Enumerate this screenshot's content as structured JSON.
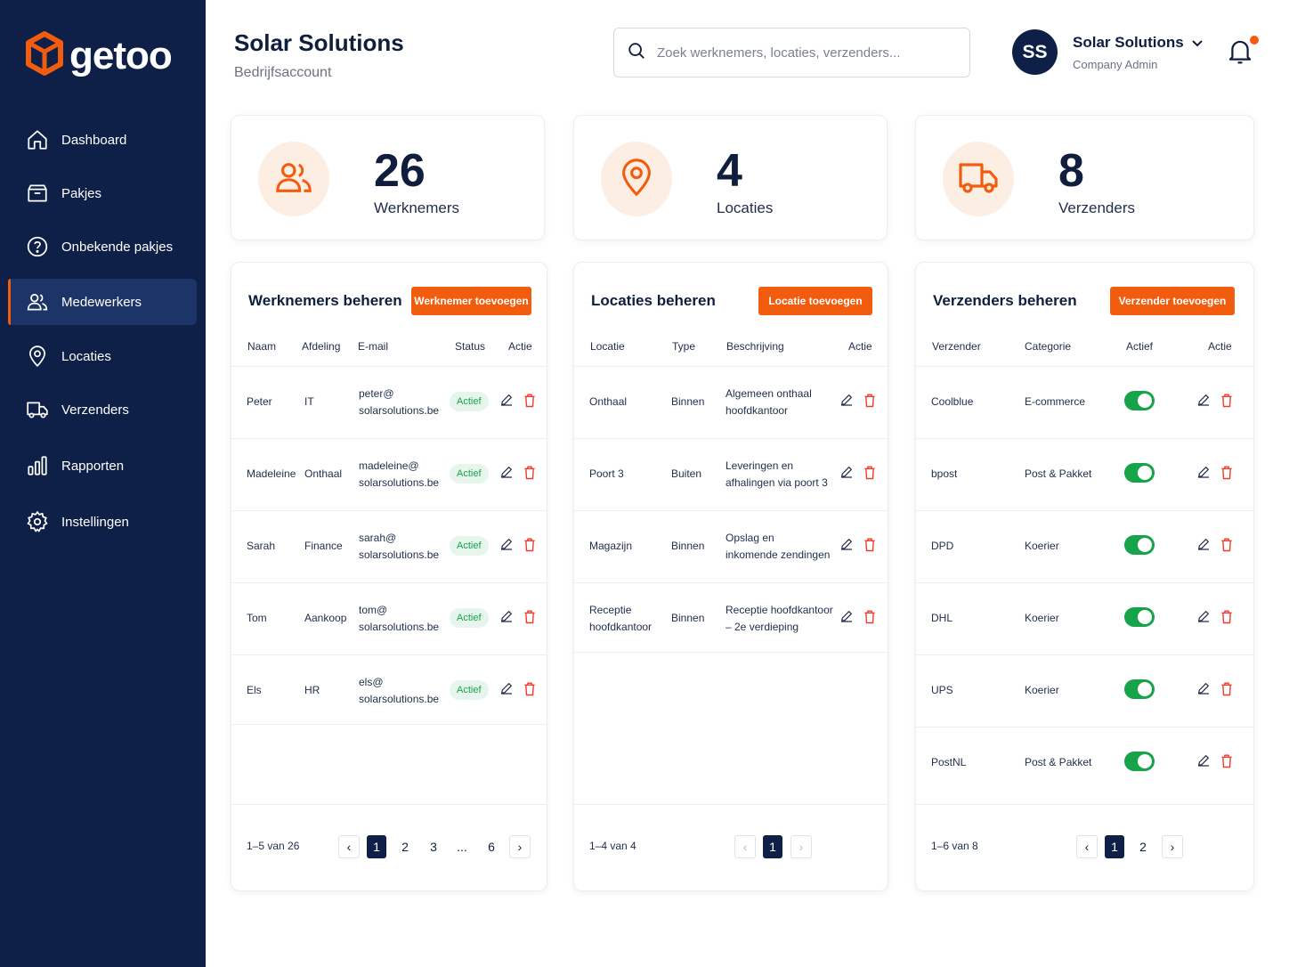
{
  "app": {
    "logo_text": "getoo"
  },
  "sidebar": {
    "items": [
      {
        "label": "Dashboard",
        "icon": "home-icon"
      },
      {
        "label": "Pakjes",
        "icon": "package-icon"
      },
      {
        "label": "Onbekende pakjes",
        "icon": "question-icon"
      },
      {
        "label": "Medewerkers",
        "icon": "users-icon",
        "active": true
      },
      {
        "label": "Locaties",
        "icon": "location-pin-icon"
      },
      {
        "label": "Verzenders",
        "icon": "truck-icon"
      },
      {
        "label": "Rapporten",
        "icon": "bar-chart-icon"
      },
      {
        "label": "Instellingen",
        "icon": "gear-icon"
      }
    ]
  },
  "header": {
    "title": "Solar Solutions",
    "subtitle": "Bedrijfsaccount",
    "search_placeholder": "Zoek werknemers, locaties, verzenders...",
    "user": {
      "initials": "SS",
      "name": "Solar Solutions",
      "role": "Company Admin"
    }
  },
  "stats": [
    {
      "value": "26",
      "label": "Werknemers",
      "icon": "users-icon"
    },
    {
      "value": "4",
      "label": "Locaties",
      "icon": "location-pin-icon"
    },
    {
      "value": "8",
      "label": "Verzenders",
      "icon": "truck-icon"
    }
  ],
  "employees": {
    "title": "Werknemers beheren",
    "add_label": "Werknemer toevoegen",
    "headers": [
      "Naam",
      "Afdeling",
      "E-mail",
      "Status",
      "Actie"
    ],
    "rows": [
      {
        "name": "Peter",
        "dept": "IT",
        "email1": "peter@",
        "email2": "solarsolutions.be",
        "status": "Actief"
      },
      {
        "name": "Madeleine",
        "dept": "Onthaal",
        "email1": "madeleine@",
        "email2": "solarsolutions.be",
        "status": "Actief"
      },
      {
        "name": "Sarah",
        "dept": "Finance",
        "email1": "sarah@",
        "email2": "solarsolutions.be",
        "status": "Actief"
      },
      {
        "name": "Tom",
        "dept": "Aankoop",
        "email1": "tom@",
        "email2": "solarsolutions.be",
        "status": "Actief"
      },
      {
        "name": "Els",
        "dept": "HR",
        "email1": "els@",
        "email2": "solarsolutions.be",
        "status": "Actief"
      }
    ],
    "range": "1–5 van 26",
    "pages": [
      "1",
      "2",
      "3",
      "...",
      "6"
    ]
  },
  "locations": {
    "title": "Locaties beheren",
    "add_label": "Locatie toevoegen",
    "headers": [
      "Locatie",
      "Type",
      "Beschrijving",
      "Actie"
    ],
    "rows": [
      {
        "loc1": "Onthaal",
        "loc2": "",
        "type": "Binnen",
        "desc1": "Algemeen onthaal",
        "desc2": "hoofdkantoor"
      },
      {
        "loc1": "Poort 3",
        "loc2": "",
        "type": "Buiten",
        "desc1": "Leveringen en",
        "desc2": "afhalingen via poort 3"
      },
      {
        "loc1": "Magazijn",
        "loc2": "",
        "type": "Binnen",
        "desc1": "Opslag en",
        "desc2": "inkomende zendingen"
      },
      {
        "loc1": "Receptie",
        "loc2": "hoofdkantoor",
        "type": "Binnen",
        "desc1": "Receptie hoofdkantoor",
        "desc2": "– 2e verdieping"
      }
    ],
    "range": "1–4 van 4",
    "pages": [
      "1"
    ]
  },
  "senders": {
    "title": "Verzenders beheren",
    "add_label": "Verzender toevoegen",
    "headers": [
      "Verzender",
      "Categorie",
      "Actief",
      "Actie"
    ],
    "rows": [
      {
        "name": "Coolblue",
        "category": "E-commerce",
        "active": true
      },
      {
        "name": "bpost",
        "category": "Post & Pakket",
        "active": true
      },
      {
        "name": "DPD",
        "category": "Koerier",
        "active": true
      },
      {
        "name": "DHL",
        "category": "Koerier",
        "active": true
      },
      {
        "name": "UPS",
        "category": "Koerier",
        "active": true
      },
      {
        "name": "PostNL",
        "category": "Post & Pakket",
        "active": true
      }
    ],
    "range": "1–6 van 8",
    "pages": [
      "1",
      "2"
    ]
  },
  "colors": {
    "sidebar": "#0e1f48",
    "accent": "#f25c0f",
    "success": "#16a34a",
    "badge_bg": "#e6f6ec"
  }
}
